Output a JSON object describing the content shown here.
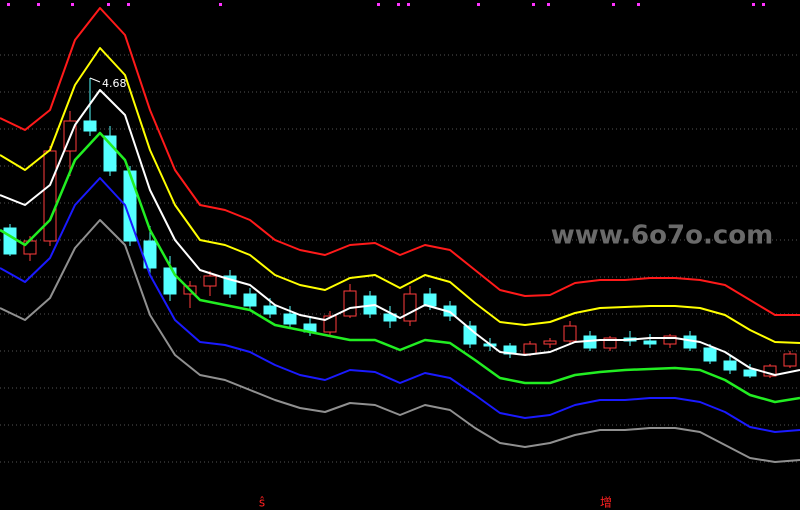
{
  "chart_data": {
    "type": "candlestick",
    "ylim": [
      0.36,
      5.46
    ],
    "yticks": [
      4.91,
      4.54,
      4.17,
      3.8,
      3.43,
      3.06,
      2.69,
      2.32,
      1.95,
      1.58,
      1.21,
      0.84
    ],
    "grid": true,
    "up_color": "#ff3c3c",
    "down_color": "#54ffff",
    "open": [
      3.18,
      2.92,
      3.05,
      3.95,
      4.25,
      4.1,
      3.75,
      3.05,
      2.78,
      2.52,
      2.6,
      2.7,
      2.52,
      2.4,
      2.32,
      2.22,
      2.14,
      2.3,
      2.5,
      2.32,
      2.25,
      2.52,
      2.4,
      2.2,
      2.02,
      2.0,
      1.92,
      2.02,
      2.05,
      2.1,
      1.98,
      2.08,
      2.05,
      2.02,
      2.1,
      1.98,
      1.85,
      1.76,
      1.7,
      1.8
    ],
    "high": [
      3.22,
      3.1,
      4.0,
      4.35,
      4.68,
      4.2,
      3.8,
      3.2,
      2.9,
      2.65,
      2.75,
      2.76,
      2.58,
      2.48,
      2.4,
      2.3,
      2.35,
      2.62,
      2.55,
      2.4,
      2.6,
      2.58,
      2.45,
      2.25,
      2.08,
      2.03,
      2.05,
      2.08,
      2.25,
      2.15,
      2.1,
      2.15,
      2.12,
      2.12,
      2.15,
      2.02,
      1.9,
      1.82,
      1.82,
      1.95
    ],
    "low": [
      2.9,
      2.85,
      3.0,
      3.7,
      4.1,
      3.7,
      3.0,
      2.7,
      2.45,
      2.38,
      2.5,
      2.48,
      2.36,
      2.28,
      2.18,
      2.1,
      2.1,
      2.28,
      2.28,
      2.18,
      2.2,
      2.36,
      2.25,
      1.98,
      1.95,
      1.88,
      1.9,
      1.98,
      2.02,
      1.95,
      1.95,
      2.0,
      1.98,
      1.98,
      1.95,
      1.82,
      1.72,
      1.68,
      1.68,
      1.78
    ],
    "close": [
      2.92,
      3.05,
      3.95,
      4.25,
      4.15,
      3.75,
      3.05,
      2.78,
      2.52,
      2.6,
      2.7,
      2.52,
      2.4,
      2.32,
      2.22,
      2.14,
      2.3,
      2.55,
      2.32,
      2.25,
      2.52,
      2.4,
      2.3,
      2.02,
      2.0,
      1.92,
      2.02,
      2.05,
      2.2,
      1.98,
      2.08,
      2.05,
      2.02,
      2.1,
      1.98,
      1.85,
      1.76,
      1.7,
      1.8,
      1.92
    ],
    "bands": [
      {
        "color": "#ff1a1a",
        "values": [
          4.28,
          4.16,
          4.36,
          5.06,
          5.38,
          5.11,
          4.36,
          3.76,
          3.41,
          3.36,
          3.26,
          3.06,
          2.96,
          2.91,
          3.01,
          3.03,
          2.91,
          3.01,
          2.96,
          2.76,
          2.56,
          2.5,
          2.51,
          2.63,
          2.66,
          2.66,
          2.68,
          2.68,
          2.66,
          2.61,
          2.46,
          2.31,
          2.31
        ]
      },
      {
        "color": "#ffff00",
        "values": [
          3.91,
          3.76,
          3.96,
          4.61,
          4.98,
          4.71,
          3.96,
          3.41,
          3.06,
          3.01,
          2.91,
          2.71,
          2.61,
          2.56,
          2.68,
          2.71,
          2.58,
          2.71,
          2.64,
          2.43,
          2.24,
          2.21,
          2.24,
          2.33,
          2.38,
          2.39,
          2.4,
          2.4,
          2.38,
          2.31,
          2.16,
          2.04,
          2.03
        ]
      },
      {
        "color": "#ffffff",
        "values": [
          3.51,
          3.41,
          3.61,
          4.21,
          4.56,
          4.31,
          3.56,
          3.06,
          2.76,
          2.68,
          2.61,
          2.41,
          2.31,
          2.26,
          2.38,
          2.41,
          2.28,
          2.41,
          2.34,
          2.13,
          1.94,
          1.91,
          1.94,
          2.04,
          2.06,
          2.06,
          2.08,
          2.08,
          2.04,
          1.94,
          1.78,
          1.71,
          1.76
        ]
      },
      {
        "color": "#22ee22",
        "values": [
          3.16,
          3.01,
          3.26,
          3.86,
          4.13,
          3.86,
          3.16,
          2.71,
          2.46,
          2.41,
          2.36,
          2.21,
          2.16,
          2.11,
          2.06,
          2.06,
          1.96,
          2.06,
          2.03,
          1.86,
          1.68,
          1.63,
          1.63,
          1.71,
          1.74,
          1.76,
          1.77,
          1.78,
          1.76,
          1.66,
          1.51,
          1.44,
          1.48
        ]
      },
      {
        "color": "#1a1aff",
        "values": [
          2.78,
          2.64,
          2.88,
          3.41,
          3.68,
          3.41,
          2.71,
          2.26,
          2.04,
          2.01,
          1.94,
          1.81,
          1.71,
          1.66,
          1.76,
          1.74,
          1.63,
          1.73,
          1.68,
          1.51,
          1.33,
          1.28,
          1.31,
          1.41,
          1.46,
          1.46,
          1.48,
          1.48,
          1.44,
          1.34,
          1.19,
          1.14,
          1.16
        ]
      },
      {
        "color": "#909090",
        "values": [
          2.38,
          2.26,
          2.48,
          2.98,
          3.26,
          3.01,
          2.31,
          1.91,
          1.71,
          1.66,
          1.56,
          1.46,
          1.38,
          1.34,
          1.43,
          1.41,
          1.31,
          1.41,
          1.36,
          1.18,
          1.03,
          0.99,
          1.03,
          1.11,
          1.16,
          1.16,
          1.18,
          1.18,
          1.14,
          1.01,
          0.88,
          0.84,
          0.86
        ]
      }
    ],
    "watermark": "www.6o7o.com",
    "annotations": [
      "ŝ",
      "增"
    ]
  }
}
